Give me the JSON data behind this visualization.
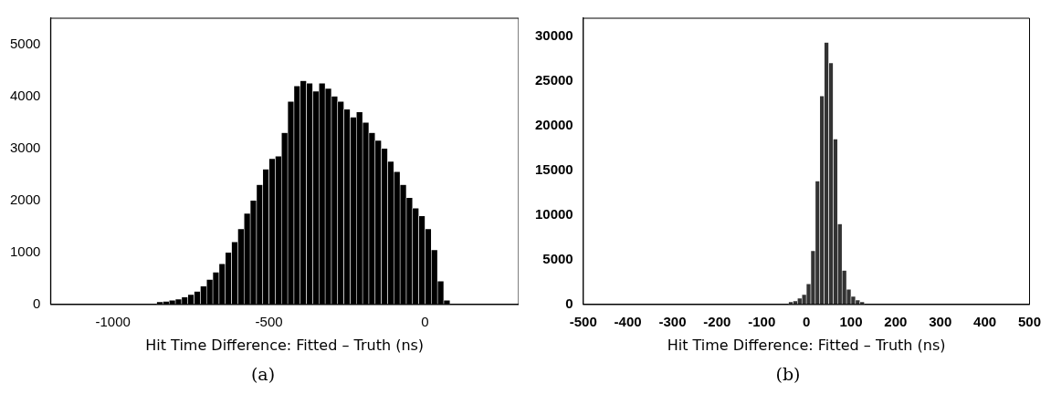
{
  "chart_data": [
    {
      "type": "histogram",
      "xlabel": "Hit Time Difference: Fitted – Truth (ns)",
      "annotations": [
        "(a)"
      ],
      "color": "#000000",
      "xlim": [
        -1200,
        300
      ],
      "xticks": [
        -1000,
        -500,
        0
      ],
      "ylim": [
        0,
        5500
      ],
      "yticks": [
        0,
        1000,
        2000,
        3000,
        4000,
        5000
      ],
      "bins": [
        -860,
        -840,
        -820,
        -800,
        -780,
        -760,
        -740,
        -720,
        -700,
        -680,
        -660,
        -640,
        -620,
        -600,
        -580,
        -560,
        -540,
        -520,
        -500,
        -480,
        -460,
        -440,
        -420,
        -400,
        -380,
        -360,
        -340,
        -320,
        -300,
        -280,
        -260,
        -240,
        -220,
        -200,
        -180,
        -160,
        -140,
        -120,
        -100,
        -80,
        -60,
        -40,
        -20,
        0,
        20,
        40,
        60,
        80,
        100
      ],
      "values": [
        50,
        60,
        80,
        100,
        140,
        190,
        250,
        350,
        480,
        620,
        780,
        1000,
        1200,
        1450,
        1750,
        2000,
        2300,
        2600,
        2800,
        2850,
        3300,
        3900,
        4200,
        4300,
        4250,
        4100,
        4250,
        4150,
        4000,
        3900,
        3750,
        3600,
        3700,
        3500,
        3300,
        3150,
        3000,
        2750,
        2550,
        2300,
        2050,
        1850,
        1700,
        1450,
        1050,
        450,
        80,
        null
      ]
    },
    {
      "type": "histogram",
      "xlabel": "Hit Time Difference: Fitted – Truth (ns)",
      "annotations": [
        "(b)"
      ],
      "color": "#333333",
      "xlim": [
        -500,
        500
      ],
      "xticks": [
        -500,
        -400,
        -300,
        -200,
        -100,
        0,
        100,
        200,
        300,
        400,
        500
      ],
      "ylim": [
        0,
        32000
      ],
      "yticks": [
        0,
        5000,
        10000,
        15000,
        20000,
        25000,
        30000
      ],
      "bins": [
        -40,
        -30,
        -20,
        -10,
        0,
        10,
        20,
        30,
        40,
        50,
        60,
        70,
        80,
        90,
        100,
        110,
        120,
        130
      ],
      "values": [
        300,
        400,
        700,
        1100,
        2300,
        6000,
        13800,
        23300,
        29300,
        27000,
        18500,
        9000,
        3800,
        1700,
        900,
        500,
        300
      ]
    }
  ]
}
